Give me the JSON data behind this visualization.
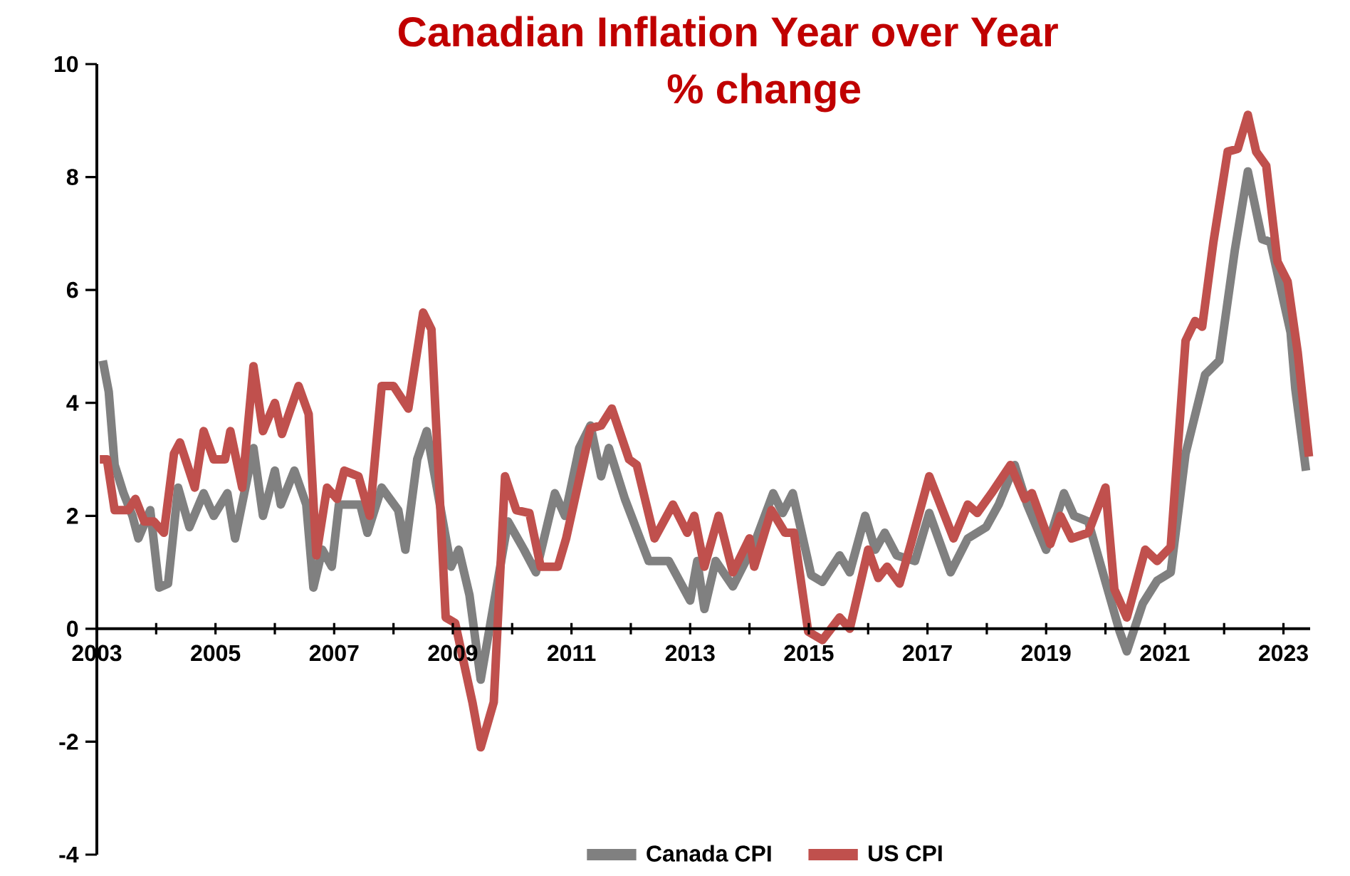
{
  "chart_data": {
    "type": "line",
    "title": "Canadian Inflation Year over Year",
    "subtitle": "% change",
    "xlim": [
      2003,
      2023.45
    ],
    "xticks": [
      2003,
      {
        "value": 2004,
        "label": null
      },
      2005,
      {
        "value": 2006,
        "label": null
      },
      2007,
      {
        "value": 2008,
        "label": null
      },
      2009,
      {
        "value": 2010,
        "label": null
      },
      2011,
      {
        "value": 2012,
        "label": null
      },
      2013,
      {
        "value": 2014,
        "label": null
      },
      2015,
      {
        "value": 2016,
        "label": null
      },
      2017,
      {
        "value": 2018,
        "label": null
      },
      2019,
      {
        "value": 2020,
        "label": null
      },
      2021,
      {
        "value": 2022,
        "label": null
      },
      2023
    ],
    "ylim": [
      -4,
      10
    ],
    "yticks": [
      -4,
      -2,
      0,
      2,
      4,
      6,
      8,
      10
    ],
    "grid": false,
    "legend": "bottom",
    "marker": "none",
    "line_style": "solid",
    "series": [
      {
        "name": "Canada CPI",
        "color": "#808080",
        "x": [
          2003.1,
          2003.2,
          2003.3,
          2003.45,
          2003.6,
          2003.7,
          2003.9,
          2004.05,
          2004.2,
          2004.37,
          2004.56,
          2004.8,
          2004.97,
          2005.2,
          2005.33,
          2005.64,
          2005.8,
          2006.0,
          2006.1,
          2006.33,
          2006.53,
          2006.65,
          2006.8,
          2006.96,
          2007.08,
          2007.44,
          2007.56,
          2007.8,
          2008.08,
          2008.2,
          2008.4,
          2008.56,
          2008.85,
          2008.97,
          2009.1,
          2009.28,
          2009.47,
          2009.93,
          2010.2,
          2010.4,
          2010.56,
          2010.72,
          2010.89,
          2011.13,
          2011.32,
          2011.5,
          2011.63,
          2011.9,
          2012.3,
          2012.64,
          2013.0,
          2013.12,
          2013.24,
          2013.43,
          2013.72,
          2014.08,
          2014.4,
          2014.56,
          2014.73,
          2015.04,
          2015.23,
          2015.52,
          2015.69,
          2015.95,
          2016.12,
          2016.28,
          2016.48,
          2016.79,
          2017.03,
          2017.39,
          2017.68,
          2017.99,
          2018.2,
          2018.47,
          2018.68,
          2019.0,
          2019.3,
          2019.47,
          2019.71,
          2020.0,
          2020.24,
          2020.36,
          2020.63,
          2020.87,
          2021.1,
          2021.35,
          2021.68,
          2021.92,
          2022.18,
          2022.4,
          2022.64,
          2022.78,
          2023.12,
          2023.2,
          2023.38
        ],
        "values": [
          4.75,
          4.2,
          2.9,
          2.4,
          2.0,
          1.6,
          2.1,
          0.73,
          0.8,
          2.5,
          1.8,
          2.4,
          2.0,
          2.4,
          1.6,
          3.2,
          2.0,
          2.8,
          2.2,
          2.8,
          2.2,
          0.73,
          1.4,
          1.1,
          2.2,
          2.2,
          1.7,
          2.5,
          2.1,
          1.4,
          3.0,
          3.5,
          1.8,
          1.1,
          1.4,
          0.6,
          -0.9,
          1.9,
          1.4,
          1.0,
          1.7,
          2.4,
          2.0,
          3.2,
          3.6,
          2.7,
          3.2,
          2.3,
          1.2,
          1.2,
          0.5,
          1.2,
          0.35,
          1.2,
          0.75,
          1.5,
          2.4,
          2.05,
          2.4,
          0.95,
          0.83,
          1.3,
          1.0,
          2.0,
          1.4,
          1.7,
          1.3,
          1.2,
          2.05,
          1.0,
          1.6,
          1.8,
          2.2,
          2.9,
          2.2,
          1.4,
          2.4,
          2.0,
          1.9,
          null,
          -0.05,
          -0.4,
          0.45,
          0.85,
          1.0,
          3.1,
          4.5,
          4.75,
          6.7,
          8.1,
          6.9,
          6.85,
          5.25,
          4.25,
          2.8
        ]
      },
      {
        "name": "US CPI",
        "color": "#c0504d",
        "x": [
          2003.05,
          2003.17,
          2003.3,
          2003.53,
          2003.65,
          2003.8,
          2003.96,
          2004.13,
          2004.3,
          2004.4,
          2004.65,
          2004.8,
          2004.97,
          2005.16,
          2005.25,
          2005.45,
          2005.64,
          2005.8,
          2006.0,
          2006.12,
          2006.4,
          2006.57,
          2006.7,
          2006.88,
          2007.05,
          2007.17,
          2007.41,
          2007.6,
          2007.8,
          2008.0,
          2008.25,
          2008.5,
          2008.64,
          2008.88,
          2009.04,
          2009.33,
          2009.47,
          2009.69,
          2009.88,
          2010.07,
          2010.29,
          2010.48,
          2010.77,
          2010.91,
          2011.32,
          2011.5,
          2011.68,
          2011.97,
          2012.1,
          2012.4,
          2012.71,
          2012.95,
          2013.07,
          2013.24,
          2013.48,
          2013.72,
          2014.0,
          2014.08,
          2014.37,
          2014.6,
          2014.75,
          2014.99,
          2015.23,
          2015.52,
          2015.69,
          2016.0,
          2016.17,
          2016.32,
          2016.53,
          2016.72,
          2017.03,
          2017.44,
          2017.68,
          2017.84,
          2018.08,
          2018.4,
          2018.64,
          2018.76,
          2019.07,
          2019.24,
          2019.43,
          2019.71,
          2020.0,
          2020.15,
          2020.36,
          2020.67,
          2020.87,
          2021.1,
          2021.35,
          2021.51,
          2021.63,
          2021.82,
          2022.06,
          2022.23,
          2022.4,
          2022.54,
          2022.71,
          2022.9,
          2023.07,
          2023.24,
          2023.43
        ],
        "values": [
          3.0,
          3.0,
          2.1,
          2.1,
          2.3,
          1.9,
          1.9,
          1.7,
          3.1,
          3.3,
          2.5,
          3.5,
          3.0,
          3.0,
          3.5,
          2.5,
          4.65,
          3.5,
          4.0,
          3.45,
          4.3,
          3.8,
          1.3,
          2.5,
          2.3,
          2.8,
          2.7,
          2.0,
          4.3,
          4.3,
          3.9,
          5.6,
          5.3,
          0.2,
          0.1,
          -1.3,
          -2.1,
          -1.3,
          2.7,
          2.1,
          2.05,
          1.1,
          1.1,
          1.6,
          3.55,
          3.6,
          3.9,
          3.0,
          2.9,
          1.6,
          2.2,
          1.7,
          2.0,
          1.1,
          2.0,
          1.0,
          1.6,
          1.1,
          2.1,
          1.7,
          1.7,
          -0.05,
          -0.2,
          0.2,
          0.0,
          1.4,
          0.9,
          1.1,
          0.8,
          1.5,
          2.7,
          1.6,
          2.2,
          2.05,
          2.4,
          2.9,
          2.3,
          2.4,
          1.5,
          2.0,
          1.6,
          1.7,
          2.5,
          0.7,
          0.2,
          1.4,
          1.2,
          1.45,
          5.1,
          5.45,
          5.35,
          6.85,
          8.45,
          8.5,
          9.1,
          8.45,
          8.2,
          6.5,
          6.15,
          4.9,
          3.05
        ]
      }
    ]
  }
}
